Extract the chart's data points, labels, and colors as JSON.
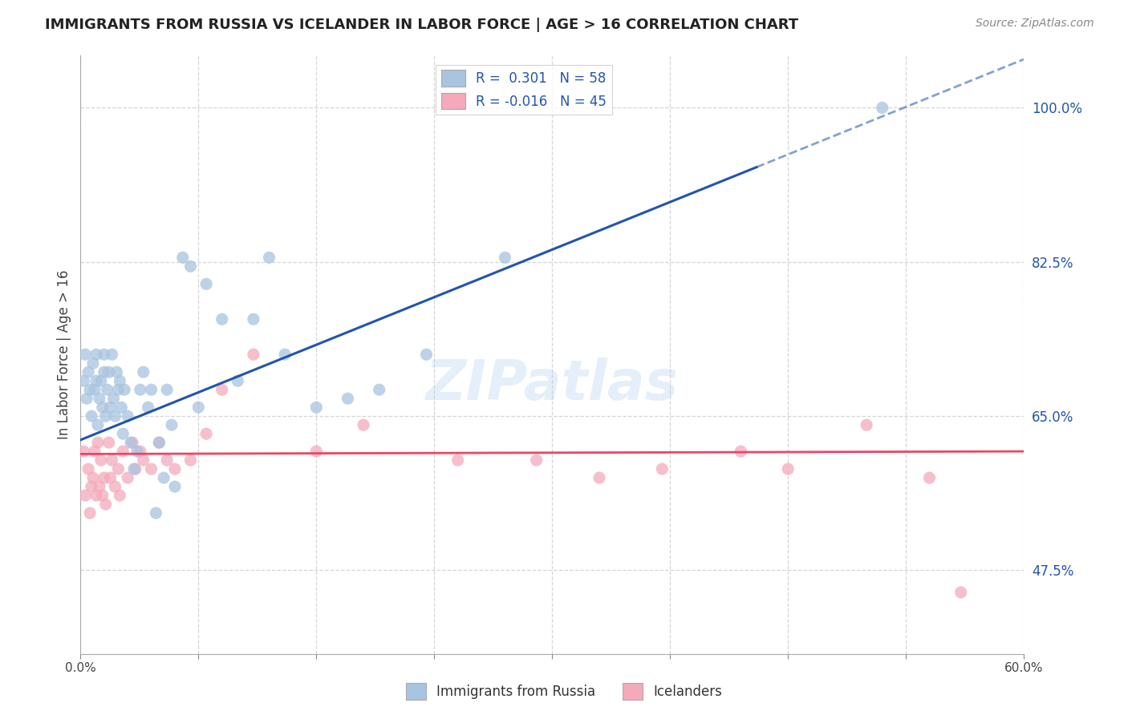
{
  "title": "IMMIGRANTS FROM RUSSIA VS ICELANDER IN LABOR FORCE | AGE > 16 CORRELATION CHART",
  "source": "Source: ZipAtlas.com",
  "ylabel": "In Labor Force | Age > 16",
  "ytick_labels": [
    "100.0%",
    "82.5%",
    "65.0%",
    "47.5%"
  ],
  "ytick_values": [
    1.0,
    0.825,
    0.65,
    0.475
  ],
  "xmin": 0.0,
  "xmax": 0.6,
  "ymin": 0.38,
  "ymax": 1.06,
  "watermark": "ZIPatlas",
  "blue_color": "#A8C4E0",
  "pink_color": "#F4AABB",
  "blue_line_color": "#2255AA",
  "pink_line_color": "#EE4466",
  "russia_points_x": [
    0.002,
    0.003,
    0.004,
    0.005,
    0.006,
    0.007,
    0.008,
    0.009,
    0.01,
    0.01,
    0.011,
    0.012,
    0.013,
    0.014,
    0.015,
    0.015,
    0.016,
    0.017,
    0.018,
    0.019,
    0.02,
    0.021,
    0.022,
    0.023,
    0.024,
    0.025,
    0.026,
    0.027,
    0.028,
    0.03,
    0.032,
    0.034,
    0.036,
    0.038,
    0.04,
    0.043,
    0.045,
    0.048,
    0.05,
    0.053,
    0.055,
    0.058,
    0.06,
    0.065,
    0.07,
    0.075,
    0.08,
    0.09,
    0.1,
    0.11,
    0.12,
    0.13,
    0.15,
    0.17,
    0.19,
    0.22,
    0.27,
    0.51
  ],
  "russia_points_y": [
    0.69,
    0.72,
    0.67,
    0.7,
    0.68,
    0.65,
    0.71,
    0.68,
    0.69,
    0.72,
    0.64,
    0.67,
    0.69,
    0.66,
    0.7,
    0.72,
    0.65,
    0.68,
    0.7,
    0.66,
    0.72,
    0.67,
    0.65,
    0.7,
    0.68,
    0.69,
    0.66,
    0.63,
    0.68,
    0.65,
    0.62,
    0.59,
    0.61,
    0.68,
    0.7,
    0.66,
    0.68,
    0.54,
    0.62,
    0.58,
    0.68,
    0.64,
    0.57,
    0.83,
    0.82,
    0.66,
    0.8,
    0.76,
    0.69,
    0.76,
    0.83,
    0.72,
    0.66,
    0.67,
    0.68,
    0.72,
    0.83,
    1.0
  ],
  "iceland_points_x": [
    0.002,
    0.003,
    0.005,
    0.006,
    0.007,
    0.008,
    0.009,
    0.01,
    0.011,
    0.012,
    0.013,
    0.014,
    0.015,
    0.016,
    0.018,
    0.019,
    0.02,
    0.022,
    0.024,
    0.025,
    0.027,
    0.03,
    0.033,
    0.035,
    0.038,
    0.04,
    0.045,
    0.05,
    0.055,
    0.06,
    0.07,
    0.08,
    0.09,
    0.11,
    0.15,
    0.18,
    0.24,
    0.29,
    0.33,
    0.37,
    0.42,
    0.45,
    0.5,
    0.54,
    0.56
  ],
  "iceland_points_y": [
    0.61,
    0.56,
    0.59,
    0.54,
    0.57,
    0.58,
    0.61,
    0.56,
    0.62,
    0.57,
    0.6,
    0.56,
    0.58,
    0.55,
    0.62,
    0.58,
    0.6,
    0.57,
    0.59,
    0.56,
    0.61,
    0.58,
    0.62,
    0.59,
    0.61,
    0.6,
    0.59,
    0.62,
    0.6,
    0.59,
    0.6,
    0.63,
    0.68,
    0.72,
    0.61,
    0.64,
    0.6,
    0.6,
    0.58,
    0.59,
    0.61,
    0.59,
    0.64,
    0.58,
    0.45
  ],
  "russia_slope": 0.72,
  "russia_intercept": 0.623,
  "russia_line_x_solid_end": 0.43,
  "iceland_slope": 0.005,
  "iceland_intercept": 0.607,
  "background_color": "#FFFFFF",
  "grid_color": "#CCCCCC"
}
